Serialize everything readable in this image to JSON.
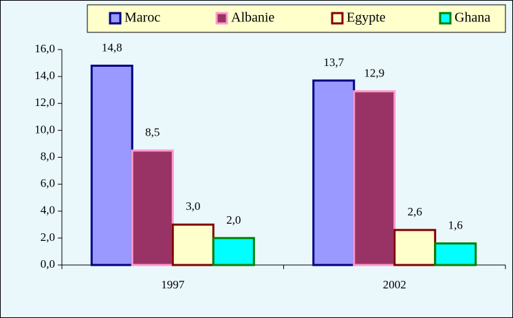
{
  "chart_data": {
    "type": "bar",
    "categories": [
      "1997",
      "2002"
    ],
    "series": [
      {
        "name": "Maroc",
        "color": "#9999ff",
        "edgecolor": "#000080",
        "values": [
          14.8,
          13.7
        ],
        "value_labels": [
          "14,8",
          "13,7"
        ]
      },
      {
        "name": "Albanie",
        "color": "#993366",
        "edgecolor": "#ff99cc",
        "values": [
          8.5,
          12.9
        ],
        "value_labels": [
          "8,5",
          "12,9"
        ]
      },
      {
        "name": "Egypte",
        "color": "#ffffcc",
        "edgecolor": "#800000",
        "values": [
          3.0,
          2.6
        ],
        "value_labels": [
          "3,0",
          "2,6"
        ]
      },
      {
        "name": "Ghana",
        "color": "#00ffff",
        "edgecolor": "#008000",
        "values": [
          2.0,
          1.6
        ],
        "value_labels": [
          "2,0",
          "1,6"
        ]
      }
    ],
    "ylim": [
      0,
      16
    ],
    "yticks": [
      {
        "value": 0,
        "label": "0,0"
      },
      {
        "value": 2,
        "label": "2,0"
      },
      {
        "value": 4,
        "label": "4,0"
      },
      {
        "value": 6,
        "label": "6,0"
      },
      {
        "value": 8,
        "label": "8,0"
      },
      {
        "value": 10,
        "label": "10,0"
      },
      {
        "value": 12,
        "label": "12,0"
      },
      {
        "value": 14,
        "label": "14,0"
      },
      {
        "value": 16,
        "label": "16,0"
      }
    ],
    "legend": "top",
    "grid": false
  }
}
